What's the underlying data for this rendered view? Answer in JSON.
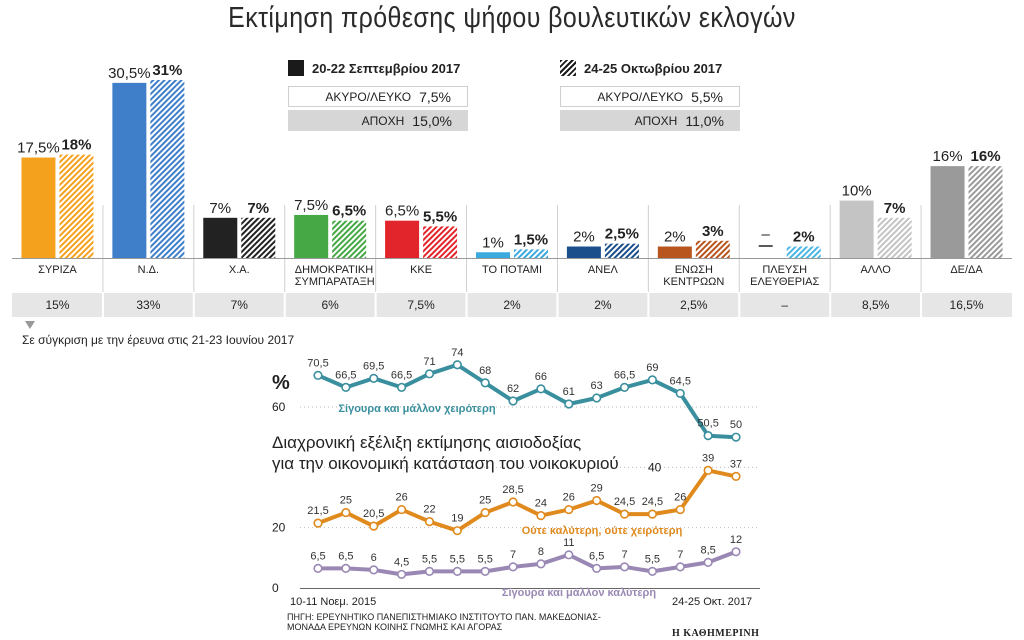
{
  "title": "Εκτίμηση πρόθεσης ψήφου βουλευτικών εκλογών",
  "legend": {
    "sep": "20-22 Σεπτεμβρίου 2017",
    "oct": "24-25 Οκτωβρίου 2017"
  },
  "stats": {
    "sep": {
      "invalid_label": "ΑΚΥΡΟ/ΛΕΥΚΟ",
      "invalid": "7,5%",
      "abst_label": "ΑΠΟΧΗ",
      "abst": "15,0%"
    },
    "oct": {
      "invalid_label": "ΑΚΥΡΟ/ΛΕΥΚΟ",
      "invalid": "5,5%",
      "abst_label": "ΑΠΟΧΗ",
      "abst": "11,0%"
    }
  },
  "compare_label": "Σε σύγκριση με την έρευνα στις 21-23 Ιουνίου 2017",
  "parties": [
    {
      "name": "ΣΥΡΙΖΑ",
      "sep_label": "17,5%",
      "oct_label": "18%",
      "june": "15%",
      "color": "#f4a21e"
    },
    {
      "name": "Ν.Δ.",
      "sep_label": "30,5%",
      "oct_label": "31%",
      "june": "33%",
      "color": "#3f7fc9"
    },
    {
      "name": "Χ.Α.",
      "sep_label": "7%",
      "oct_label": "7%",
      "june": "7%",
      "color": "#222222"
    },
    {
      "name": "ΔΗΜΟΚΡΑΤΙΚΗ ΣΥΜΠΑΡΑΤΑΞΗ",
      "sep_label": "7,5%",
      "oct_label": "6,5%",
      "june": "6%",
      "color": "#45a844"
    },
    {
      "name": "ΚΚΕ",
      "sep_label": "6,5%",
      "oct_label": "5,5%",
      "june": "7,5%",
      "color": "#e2242b"
    },
    {
      "name": "ΤΟ ΠΟΤΑΜΙ",
      "sep_label": "1%",
      "oct_label": "1,5%",
      "june": "2%",
      "color": "#3aa9dd"
    },
    {
      "name": "ΑΝΕΛ",
      "sep_label": "2%",
      "oct_label": "2,5%",
      "june": "2%",
      "color": "#1a4f8c"
    },
    {
      "name": "ΕΝΩΣΗ ΚΕΝΤΡΩΩΝ",
      "sep_label": "2%",
      "oct_label": "3%",
      "june": "2,5%",
      "color": "#b8541e"
    },
    {
      "name": "ΠΛΕΥΣΗ ΕΛΕΥΘΕΡΙΑΣ",
      "sep_label": "–",
      "oct_label": "2%",
      "june": "–",
      "color": "#4ab6e3"
    },
    {
      "name": "ΑΛΛΟ",
      "sep_label": "10%",
      "oct_label": "7%",
      "june": "8,5%",
      "color": "#c4c4c4"
    },
    {
      "name": "ΔΕ/ΔΑ",
      "sep_label": "16%",
      "oct_label": "16%",
      "june": "16,5%",
      "color": "#9a9a9a"
    }
  ],
  "line_chart": {
    "title_line1": "Διαχρονική εξέλιξη εκτίμησης αισιοδοξίας",
    "title_line2": "για την οικονομική κατάσταση του νοικοκυριού",
    "y_unit": "%",
    "y_ticks": [
      "60",
      "40",
      "20",
      "0"
    ],
    "x_start": "10-11 Νοεμ. 2015",
    "x_end": "24-25 Οκτ. 2017"
  },
  "source": {
    "line1": "ΠΗΓΗ: ΕΡΕΥΝΗΤΙΚΟ ΠΑΝΕΠΙΣΤΗΜΙΑΚΟ ΙΝΣΤΙΤΟΥΤΟ ΠΑΝ. ΜΑΚΕΔΟΝΙΑΣ-",
    "line2": "ΜΟΝΑΔΑ ΕΡΕΥΝΩΝ ΚΟΙΝΗΣ ΓΝΩΜΗΣ ΚΑΙ ΑΓΟΡΑΣ",
    "brand": "Η ΚΑΘΗΜΕΡΙΝΗ"
  },
  "chart_data": [
    {
      "type": "bar",
      "title": "Εκτίμηση πρόθεσης ψήφου βουλευτικών εκλογών",
      "categories": [
        "ΣΥΡΙΖΑ",
        "Ν.Δ.",
        "Χ.Α.",
        "ΔΗΜΟΚΡΑΤΙΚΗ ΣΥΜΠΑΡΑΤΑΞΗ",
        "ΚΚΕ",
        "ΤΟ ΠΟΤΑΜΙ",
        "ΑΝΕΛ",
        "ΕΝΩΣΗ ΚΕΝΤΡΩΩΝ",
        "ΠΛΕΥΣΗ ΕΛΕΥΘΕΡΙΑΣ",
        "ΑΛΛΟ",
        "ΔΕ/ΔΑ"
      ],
      "series": [
        {
          "name": "20-22 Σεπτεμβρίου 2017",
          "values": [
            17.5,
            30.5,
            7,
            7.5,
            6.5,
            1,
            2,
            2,
            null,
            10,
            16
          ]
        },
        {
          "name": "24-25 Οκτωβρίου 2017",
          "values": [
            18,
            31,
            7,
            6.5,
            5.5,
            1.5,
            2.5,
            3,
            2,
            7,
            16
          ]
        }
      ],
      "ylim": [
        0,
        31
      ]
    },
    {
      "type": "line",
      "title": "Διαχρονική εξέλιξη εκτίμησης αισιοδοξίας για την οικονομική κατάσταση του νοικοκυριού",
      "ylabel": "%",
      "ylim": [
        0,
        75
      ],
      "x": [
        "10-11 Νοεμ. 2015",
        "",
        "",
        "",
        "",
        "",
        "",
        "",
        "",
        "",
        "",
        "",
        "",
        "",
        "",
        "24-25 Οκτ. 2017"
      ],
      "series": [
        {
          "name": "Σίγουρα και μάλλον χειρότερη",
          "color": "#3a8f9e",
          "values": [
            70.5,
            66.5,
            69.5,
            66.5,
            71,
            74,
            68,
            62,
            66,
            61,
            63,
            66.5,
            69,
            64.5,
            50.5,
            50
          ],
          "labels": [
            "70,5",
            "66,5",
            "69,5",
            "66,5",
            "71",
            "74",
            "68",
            "62",
            "66",
            "61",
            "63",
            "66,5",
            "69",
            "64,5",
            "50,5",
            "50"
          ]
        },
        {
          "name": "Ούτε καλύτερη, ούτε χειρότερη",
          "color": "#e08a1e",
          "values": [
            21.5,
            25,
            20.5,
            26,
            22,
            19,
            25,
            28.5,
            24,
            26,
            29,
            24.5,
            24.5,
            26,
            39,
            37
          ],
          "labels": [
            "21,5",
            "25",
            "20,5",
            "26",
            "22",
            "19",
            "25",
            "28,5",
            "24",
            "26",
            "29",
            "24,5",
            "24,5",
            "26",
            "39",
            "37"
          ]
        },
        {
          "name": "Σίγουρα και μάλλον καλύτερη",
          "color": "#9a88b4",
          "values": [
            6.5,
            6.5,
            6,
            4.5,
            5.5,
            5.5,
            5.5,
            7,
            8,
            11,
            6.5,
            7,
            5.5,
            7,
            8.5,
            12
          ],
          "labels": [
            "6,5",
            "6,5",
            "6",
            "4,5",
            "5,5",
            "5,5",
            "5,5",
            "7",
            "8",
            "11",
            "6,5",
            "7",
            "5,5",
            "7",
            "8,5",
            "12"
          ]
        }
      ]
    }
  ]
}
